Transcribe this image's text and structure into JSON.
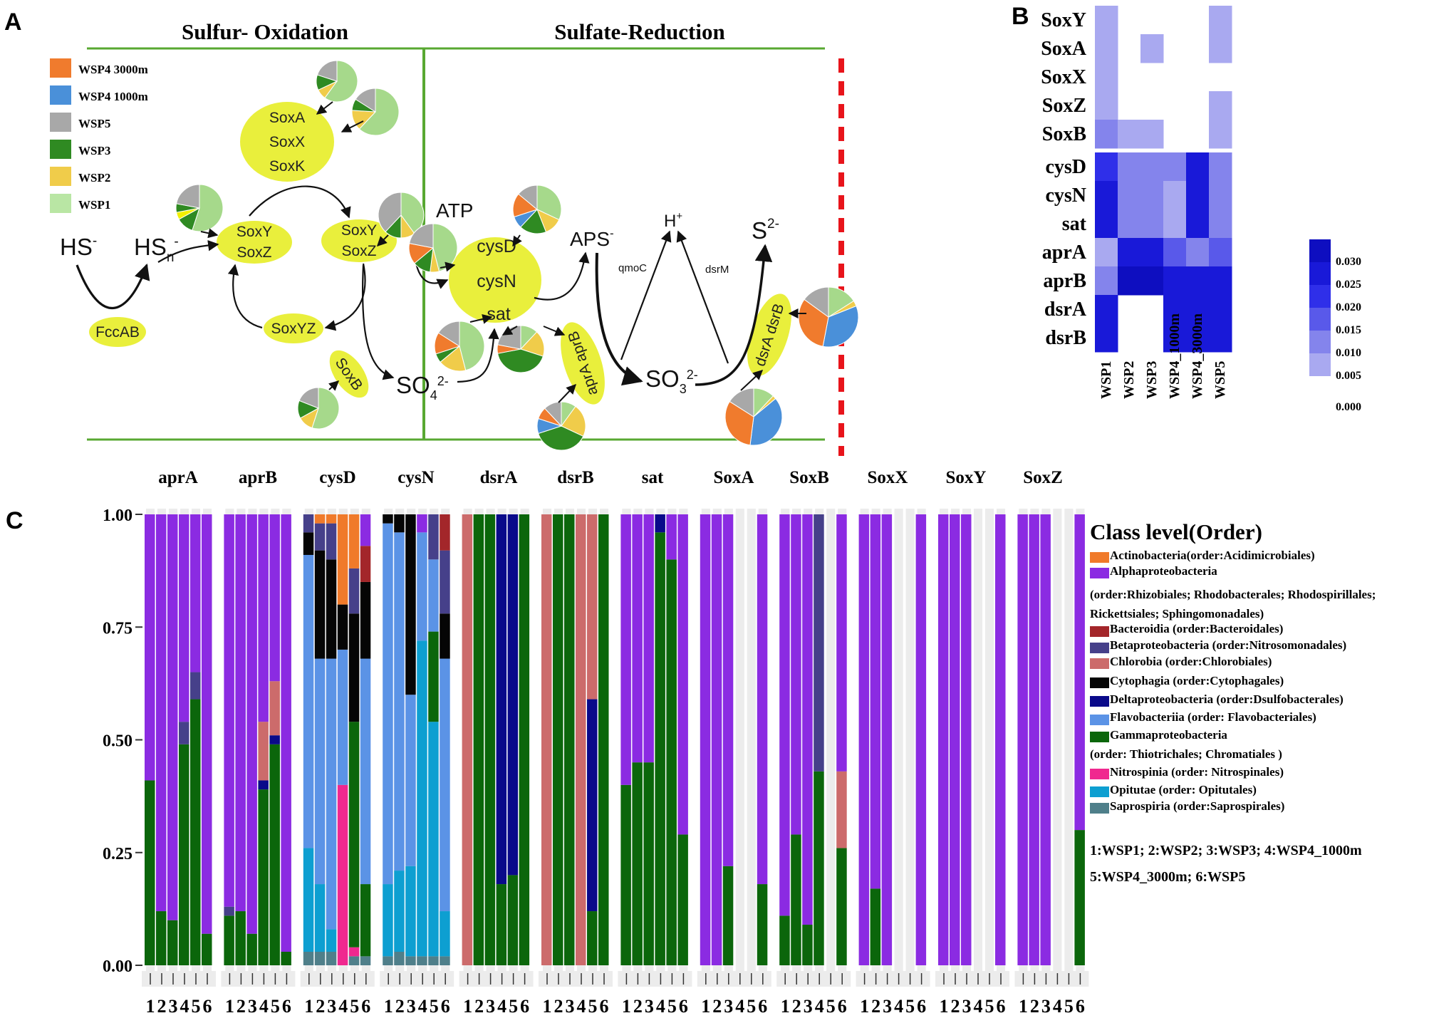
{
  "panel_labels": {
    "a": "A",
    "b": "B",
    "c": "C"
  },
  "pathway": {
    "title_left": "Sulfur- Oxidation",
    "title_right": "Sulfate-Reduction",
    "legend": [
      {
        "label": "WSP4 3000m",
        "color": "#f07b2d"
      },
      {
        "label": "WSP4 1000m",
        "color": "#4a90d9"
      },
      {
        "label": "WSP5",
        "color": "#a8a8a8"
      },
      {
        "label": "WSP3",
        "color": "#2f8a22"
      },
      {
        "label": "WSP2",
        "color": "#f0cc4a"
      },
      {
        "label": "WSP1",
        "color": "#b9e6a4"
      }
    ],
    "compounds": {
      "hs": "HS",
      "hs_sup": "-",
      "hsn": "HS",
      "hsn_sub": "n",
      "hsn_sup": "-",
      "atp": "ATP",
      "aps": "APS",
      "aps_sup": "-",
      "h": "H",
      "h_sup": "+",
      "s": "S",
      "s_sup": "2-",
      "so4": "SO",
      "so4_sub": "4",
      "so4_sup": "2-",
      "so3": "SO",
      "so3_sub": "3",
      "so3_sup": "2-"
    },
    "enzymes": {
      "soxaxk": [
        "SoxA",
        "SoxX",
        "SoxK"
      ],
      "soxyz1": [
        "SoxY",
        "SoxZ"
      ],
      "soxyz2": [
        "SoxY",
        "SoxZ"
      ],
      "soxyz": "SoxYZ",
      "soxb": "SoxB",
      "fccab": "FccAB",
      "cys": [
        "cysD",
        "cysN",
        "sat"
      ],
      "apr": "aprA aprB",
      "dsr": "dsrA dsrB",
      "qmoc": "qmoC",
      "dsrm": "dsrM"
    }
  },
  "heatmap": {
    "rows": [
      "SoxY",
      "SoxA",
      "SoxX",
      "SoxZ",
      "SoxB",
      "cysD",
      "cysN",
      "sat",
      "aprA",
      "aprB",
      "dsrA",
      "dsrB"
    ],
    "cols": [
      "WSP1",
      "WSP2",
      "WSP3",
      "WSP4_1000m",
      "WSP4_3000m",
      "WSP5"
    ],
    "values": [
      [
        0.005,
        0,
        0,
        0,
        0,
        0.005
      ],
      [
        0.005,
        0,
        0.005,
        0,
        0,
        0.005
      ],
      [
        0.005,
        0,
        0,
        0,
        0,
        0
      ],
      [
        0.005,
        0,
        0,
        0,
        0,
        0.005
      ],
      [
        0.012,
        0.005,
        0.005,
        0,
        0,
        0.005
      ],
      [
        0.022,
        0.014,
        0.014,
        0.014,
        0.026,
        0.014
      ],
      [
        0.026,
        0.014,
        0.014,
        0.006,
        0.026,
        0.014
      ],
      [
        0.026,
        0.014,
        0.014,
        0.006,
        0.026,
        0.014
      ],
      [
        0.006,
        0.026,
        0.026,
        0.018,
        0.012,
        0.018
      ],
      [
        0.012,
        0.032,
        0.032,
        0.028,
        0.026,
        0.028
      ],
      [
        0.026,
        0,
        0,
        0.028,
        0.028,
        0.028
      ],
      [
        0.026,
        0,
        0,
        0.028,
        0.028,
        0.028
      ]
    ],
    "scale_labels": [
      "0.030",
      "0.025",
      "0.020",
      "0.015",
      "0.010",
      "0.005",
      "0.000"
    ]
  },
  "chart_data": {
    "type": "bar",
    "title": "",
    "xlabel": "",
    "ylabel": "",
    "ylim": [
      0,
      1
    ],
    "yticks": [
      "0.00",
      "0.25",
      "0.50",
      "0.75",
      "1.00"
    ],
    "x_tick_labels": [
      "1",
      "2",
      "3",
      "4",
      "5",
      "6"
    ],
    "genes": [
      "aprA",
      "aprB",
      "cysD",
      "cysN",
      "dsrA",
      "dsrB",
      "sat",
      "SoxA",
      "SoxB",
      "SoxX",
      "SoxY",
      "SoxZ"
    ],
    "legend_title": "Class level(Order)",
    "legend": [
      {
        "key": "Act",
        "color": "#f07a2a",
        "lines": [
          "Actinobacteria(order:Acidimicrobiales)"
        ]
      },
      {
        "key": "Alpha",
        "color": "#8b2be2",
        "lines": [
          "Alphaproteobacteria",
          "(order:Rhizobiales; Rhodobacterales; Rhodospirillales;",
          "Rickettsiales; Sphingomonadales)"
        ]
      },
      {
        "key": "Bact",
        "color": "#a3262a",
        "lines": [
          "Bacteroidia (order:Bacteroidales)"
        ]
      },
      {
        "key": "Beta",
        "color": "#46408a",
        "lines": [
          "Betaproteobacteria (order:Nitrosomonadales)"
        ]
      },
      {
        "key": "Chlo",
        "color": "#cc6b6b",
        "lines": [
          "Chlorobia (order:Chlorobiales)"
        ]
      },
      {
        "key": "Cyto",
        "color": "#050505",
        "lines": [
          "Cytophagia (order:Cytophagales)"
        ]
      },
      {
        "key": "Delta",
        "color": "#0a0a8a",
        "lines": [
          "Deltaproteobacteria (order:Dsulfobacterales)"
        ]
      },
      {
        "key": "Flavo",
        "color": "#5b93e6",
        "lines": [
          "Flavobacteriia (order: Flavobacteriales)"
        ]
      },
      {
        "key": "Gamma",
        "color": "#0b660b",
        "lines": [
          "Gammaproteobacteria",
          "(order: Thiotrichales; Chromatiales )"
        ]
      },
      {
        "key": "Nitro",
        "color": "#f0288f",
        "lines": [
          "Nitrospinia (order: Nitrospinales)"
        ]
      },
      {
        "key": "Opi",
        "color": "#0d9fd1",
        "lines": [
          "Opitutae (order: Opitutales)"
        ]
      },
      {
        "key": "Sapro",
        "color": "#4f7f8a",
        "lines": [
          "Saprospiria (order:Saprospirales)"
        ]
      }
    ],
    "sample_key": [
      "1:WSP1; 2:WSP2; 3:WSP3; 4:WSP4_1000m",
      "5:WSP4_3000m; 6:WSP5"
    ],
    "series": [
      {
        "gene": "aprA",
        "bars": [
          [
            [
              "Gamma",
              0.41
            ],
            [
              "Alpha",
              0.59
            ]
          ],
          [
            [
              "Gamma",
              0.12
            ],
            [
              "Alpha",
              0.88
            ]
          ],
          [
            [
              "Gamma",
              0.1
            ],
            [
              "Alpha",
              0.9
            ]
          ],
          [
            [
              "Gamma",
              0.49
            ],
            [
              "Beta",
              0.05
            ],
            [
              "Alpha",
              0.46
            ]
          ],
          [
            [
              "Gamma",
              0.59
            ],
            [
              "Beta",
              0.06
            ],
            [
              "Alpha",
              0.35
            ]
          ],
          [
            [
              "Gamma",
              0.07
            ],
            [
              "Alpha",
              0.93
            ]
          ]
        ]
      },
      {
        "gene": "aprB",
        "bars": [
          [
            [
              "Gamma",
              0.11
            ],
            [
              "Beta",
              0.02
            ],
            [
              "Alpha",
              0.87
            ]
          ],
          [
            [
              "Gamma",
              0.12
            ],
            [
              "Alpha",
              0.88
            ]
          ],
          [
            [
              "Gamma",
              0.07
            ],
            [
              "Alpha",
              0.93
            ]
          ],
          [
            [
              "Gamma",
              0.39
            ],
            [
              "Delta",
              0.02
            ],
            [
              "Chlo",
              0.13
            ],
            [
              "Alpha",
              0.46
            ]
          ],
          [
            [
              "Gamma",
              0.49
            ],
            [
              "Delta",
              0.02
            ],
            [
              "Chlo",
              0.12
            ],
            [
              "Alpha",
              0.37
            ]
          ],
          [
            [
              "Gamma",
              0.03
            ],
            [
              "Alpha",
              0.97
            ]
          ]
        ]
      },
      {
        "gene": "cysD",
        "bars": [
          [
            [
              "Sapro",
              0.03
            ],
            [
              "Opi",
              0.23
            ],
            [
              "Flavo",
              0.65
            ],
            [
              "Cyto",
              0.05
            ],
            [
              "Beta",
              0.04
            ]
          ],
          [
            [
              "Sapro",
              0.03
            ],
            [
              "Opi",
              0.15
            ],
            [
              "Flavo",
              0.5
            ],
            [
              "Cyto",
              0.24
            ],
            [
              "Beta",
              0.06
            ],
            [
              "Act",
              0.02
            ]
          ],
          [
            [
              "Sapro",
              0.03
            ],
            [
              "Opi",
              0.05
            ],
            [
              "Flavo",
              0.6
            ],
            [
              "Cyto",
              0.22
            ],
            [
              "Beta",
              0.08
            ],
            [
              "Act",
              0.02
            ]
          ],
          [
            [
              "Nitro",
              0.4
            ],
            [
              "Flavo",
              0.3
            ],
            [
              "Cyto",
              0.1
            ],
            [
              "Act",
              0.2
            ]
          ],
          [
            [
              "Sapro",
              0.02
            ],
            [
              "Nitro",
              0.02
            ],
            [
              "Gamma",
              0.5
            ],
            [
              "Cyto",
              0.24
            ],
            [
              "Beta",
              0.1
            ],
            [
              "Act",
              0.12
            ]
          ],
          [
            [
              "Sapro",
              0.02
            ],
            [
              "Gamma",
              0.16
            ],
            [
              "Flavo",
              0.5
            ],
            [
              "Cyto",
              0.17
            ],
            [
              "Bact",
              0.08
            ],
            [
              "Alpha",
              0.07
            ]
          ]
        ]
      },
      {
        "gene": "cysN",
        "bars": [
          [
            [
              "Sapro",
              0.02
            ],
            [
              "Opi",
              0.16
            ],
            [
              "Flavo",
              0.8
            ],
            [
              "Cyto",
              0.02
            ]
          ],
          [
            [
              "Sapro",
              0.03
            ],
            [
              "Opi",
              0.18
            ],
            [
              "Flavo",
              0.75
            ],
            [
              "Cyto",
              0.04
            ]
          ],
          [
            [
              "Sapro",
              0.02
            ],
            [
              "Opi",
              0.2
            ],
            [
              "Flavo",
              0.38
            ],
            [
              "Cyto",
              0.4
            ]
          ],
          [
            [
              "Sapro",
              0.02
            ],
            [
              "Opi",
              0.7
            ],
            [
              "Flavo",
              0.24
            ],
            [
              "Alpha",
              0.04
            ]
          ],
          [
            [
              "Sapro",
              0.02
            ],
            [
              "Opi",
              0.52
            ],
            [
              "Gamma",
              0.2
            ],
            [
              "Flavo",
              0.16
            ],
            [
              "Beta",
              0.1
            ]
          ],
          [
            [
              "Sapro",
              0.02
            ],
            [
              "Opi",
              0.1
            ],
            [
              "Flavo",
              0.56
            ],
            [
              "Cyto",
              0.1
            ],
            [
              "Beta",
              0.14
            ],
            [
              "Bact",
              0.08
            ]
          ]
        ]
      },
      {
        "gene": "dsrA",
        "bars": [
          [
            [
              "Chlo",
              1.0
            ]
          ],
          [
            [
              "Gamma",
              1.0
            ]
          ],
          [
            [
              "Gamma",
              1.0
            ]
          ],
          [
            [
              "Gamma",
              0.18
            ],
            [
              "Delta",
              0.82
            ]
          ],
          [
            [
              "Gamma",
              0.2
            ],
            [
              "Delta",
              0.8
            ]
          ],
          [
            [
              "Gamma",
              1.0
            ]
          ]
        ]
      },
      {
        "gene": "dsrB",
        "bars": [
          [
            [
              "Chlo",
              1.0
            ]
          ],
          [
            [
              "Gamma",
              1.0
            ]
          ],
          [
            [
              "Gamma",
              1.0
            ]
          ],
          [
            [
              "Chlo",
              1.0
            ]
          ],
          [
            [
              "Gamma",
              0.12
            ],
            [
              "Delta",
              0.47
            ],
            [
              "Chlo",
              0.41
            ]
          ],
          [
            [
              "Gamma",
              1.0
            ]
          ]
        ]
      },
      {
        "gene": "sat",
        "bars": [
          [
            [
              "Gamma",
              0.4
            ],
            [
              "Alpha",
              0.6
            ]
          ],
          [
            [
              "Gamma",
              0.45
            ],
            [
              "Alpha",
              0.55
            ]
          ],
          [
            [
              "Gamma",
              0.45
            ],
            [
              "Alpha",
              0.55
            ]
          ],
          [
            [
              "Gamma",
              0.96
            ],
            [
              "Delta",
              0.04
            ]
          ],
          [
            [
              "Gamma",
              0.9
            ],
            [
              "Alpha",
              0.1
            ]
          ],
          [
            [
              "Gamma",
              0.29
            ],
            [
              "Alpha",
              0.71
            ]
          ]
        ]
      },
      {
        "gene": "SoxA",
        "bars": [
          [
            [
              "Alpha",
              1.0
            ]
          ],
          [
            [
              "Alpha",
              1.0
            ]
          ],
          [
            [
              "Gamma",
              0.22
            ],
            [
              "Alpha",
              0.78
            ]
          ],
          [],
          [],
          [
            [
              "Gamma",
              0.18
            ],
            [
              "Alpha",
              0.82
            ]
          ]
        ]
      },
      {
        "gene": "SoxB",
        "bars": [
          [
            [
              "Gamma",
              0.11
            ],
            [
              "Alpha",
              0.89
            ]
          ],
          [
            [
              "Gamma",
              0.29
            ],
            [
              "Alpha",
              0.71
            ]
          ],
          [
            [
              "Gamma",
              0.09
            ],
            [
              "Alpha",
              0.91
            ]
          ],
          [
            [
              "Gamma",
              0.43
            ],
            [
              "Beta",
              0.57
            ]
          ],
          [],
          [
            [
              "Gamma",
              0.26
            ],
            [
              "Chlo",
              0.17
            ],
            [
              "Alpha",
              0.57
            ]
          ]
        ]
      },
      {
        "gene": "SoxX",
        "bars": [
          [
            [
              "Alpha",
              1.0
            ]
          ],
          [
            [
              "Gamma",
              0.17
            ],
            [
              "Alpha",
              0.83
            ]
          ],
          [
            [
              "Alpha",
              1.0
            ]
          ],
          [],
          [],
          [
            [
              "Alpha",
              1.0
            ]
          ]
        ]
      },
      {
        "gene": "SoxY",
        "bars": [
          [
            [
              "Alpha",
              1.0
            ]
          ],
          [
            [
              "Alpha",
              1.0
            ]
          ],
          [
            [
              "Alpha",
              1.0
            ]
          ],
          [],
          [],
          [
            [
              "Alpha",
              1.0
            ]
          ]
        ]
      },
      {
        "gene": "SoxZ",
        "bars": [
          [
            [
              "Alpha",
              1.0
            ]
          ],
          [
            [
              "Alpha",
              1.0
            ]
          ],
          [
            [
              "Alpha",
              1.0
            ]
          ],
          [],
          [],
          [
            [
              "Gamma",
              0.3
            ],
            [
              "Alpha",
              0.7
            ]
          ]
        ]
      }
    ]
  }
}
